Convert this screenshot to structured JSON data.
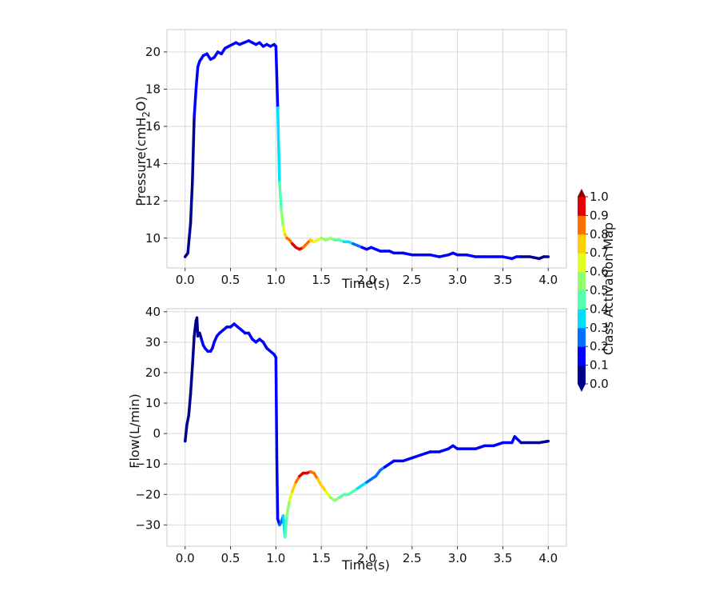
{
  "chart_data": [
    {
      "type": "line",
      "xlabel": "Time(s)",
      "ylabel": "Pressure(cmH",
      "ylabel_sub": "2",
      "ylabel_end": "O)",
      "xlim": [
        -0.2,
        4.2
      ],
      "ylim": [
        8.4,
        21.2
      ],
      "xticks": [
        0.0,
        0.5,
        1.0,
        1.5,
        2.0,
        2.5,
        3.0,
        3.5,
        4.0
      ],
      "xtick_labels": [
        "0.0",
        "0.5",
        "1.0",
        "1.5",
        "2.0",
        "2.5",
        "3.0",
        "3.5",
        "4.0"
      ],
      "yticks": [
        10,
        12,
        14,
        16,
        18,
        20
      ],
      "ytick_labels": [
        "10",
        "12",
        "14",
        "16",
        "18",
        "20"
      ],
      "grid": true,
      "series": [
        {
          "x": [
            0.0,
            0.03,
            0.06,
            0.08,
            0.1,
            0.12,
            0.14,
            0.16,
            0.2,
            0.24,
            0.28,
            0.32,
            0.36,
            0.4,
            0.44,
            0.48,
            0.52,
            0.56,
            0.6,
            0.65,
            0.7,
            0.74,
            0.78,
            0.82,
            0.86,
            0.9,
            0.94,
            0.98,
            1.0,
            1.02,
            1.04,
            1.06,
            1.08,
            1.1,
            1.12,
            1.15,
            1.18,
            1.22,
            1.26,
            1.3,
            1.34,
            1.38,
            1.42,
            1.46,
            1.5,
            1.55,
            1.6,
            1.65,
            1.7,
            1.75,
            1.8,
            1.85,
            1.9,
            1.95,
            2.0,
            2.05,
            2.1,
            2.15,
            2.2,
            2.25,
            2.3,
            2.35,
            2.4,
            2.5,
            2.6,
            2.7,
            2.8,
            2.9,
            2.95,
            3.0,
            3.1,
            3.2,
            3.3,
            3.4,
            3.5,
            3.6,
            3.65,
            3.7,
            3.8,
            3.9,
            3.95,
            4.0
          ],
          "y": [
            9.0,
            9.2,
            10.8,
            13.0,
            16.5,
            18.0,
            19.2,
            19.5,
            19.8,
            19.9,
            19.6,
            19.7,
            20.0,
            19.9,
            20.2,
            20.3,
            20.4,
            20.5,
            20.4,
            20.5,
            20.6,
            20.5,
            20.4,
            20.5,
            20.3,
            20.4,
            20.3,
            20.4,
            20.3,
            17.0,
            13.0,
            11.5,
            10.6,
            10.2,
            10.0,
            9.9,
            9.7,
            9.5,
            9.4,
            9.5,
            9.7,
            9.9,
            9.8,
            9.9,
            10.0,
            9.9,
            10.0,
            9.9,
            9.9,
            9.8,
            9.8,
            9.7,
            9.6,
            9.5,
            9.4,
            9.5,
            9.4,
            9.3,
            9.3,
            9.3,
            9.2,
            9.2,
            9.2,
            9.1,
            9.1,
            9.1,
            9.0,
            9.1,
            9.2,
            9.1,
            9.1,
            9.0,
            9.0,
            9.0,
            9.0,
            8.9,
            9.0,
            9.0,
            9.0,
            8.9,
            9.0,
            9.0
          ],
          "activation": [
            0.0,
            0.0,
            0.05,
            0.08,
            0.1,
            0.1,
            0.1,
            0.1,
            0.1,
            0.1,
            0.1,
            0.1,
            0.1,
            0.1,
            0.1,
            0.1,
            0.1,
            0.1,
            0.1,
            0.1,
            0.1,
            0.1,
            0.1,
            0.1,
            0.1,
            0.1,
            0.1,
            0.1,
            0.12,
            0.25,
            0.35,
            0.45,
            0.55,
            0.65,
            0.75,
            0.85,
            0.92,
            0.95,
            0.95,
            0.9,
            0.85,
            0.75,
            0.7,
            0.65,
            0.6,
            0.55,
            0.5,
            0.5,
            0.45,
            0.4,
            0.35,
            0.3,
            0.25,
            0.2,
            0.15,
            0.15,
            0.12,
            0.12,
            0.12,
            0.12,
            0.12,
            0.12,
            0.12,
            0.12,
            0.12,
            0.12,
            0.12,
            0.12,
            0.12,
            0.12,
            0.12,
            0.12,
            0.12,
            0.12,
            0.1,
            0.1,
            0.1,
            0.1,
            0.08,
            0.05,
            0.05,
            0.0
          ]
        }
      ]
    },
    {
      "type": "line",
      "xlabel": "Time(s)",
      "ylabel": "Flow(L/min)",
      "xlim": [
        -0.2,
        4.2
      ],
      "ylim": [
        -37,
        41
      ],
      "xticks": [
        0.0,
        0.5,
        1.0,
        1.5,
        2.0,
        2.5,
        3.0,
        3.5,
        4.0
      ],
      "xtick_labels": [
        "0.0",
        "0.5",
        "1.0",
        "1.5",
        "2.0",
        "2.5",
        "3.0",
        "3.5",
        "4.0"
      ],
      "yticks": [
        -30,
        -20,
        -10,
        0,
        10,
        20,
        30,
        40
      ],
      "ytick_labels": [
        "−30",
        "−20",
        "−10",
        "0",
        "10",
        "20",
        "30",
        "40"
      ],
      "grid": true,
      "series": [
        {
          "x": [
            0.0,
            0.02,
            0.04,
            0.06,
            0.08,
            0.1,
            0.12,
            0.13,
            0.14,
            0.16,
            0.18,
            0.2,
            0.22,
            0.25,
            0.28,
            0.3,
            0.32,
            0.35,
            0.38,
            0.42,
            0.46,
            0.5,
            0.54,
            0.58,
            0.62,
            0.66,
            0.7,
            0.74,
            0.78,
            0.82,
            0.86,
            0.9,
            0.94,
            0.98,
            1.0,
            1.01,
            1.02,
            1.04,
            1.06,
            1.08,
            1.1,
            1.12,
            1.15,
            1.18,
            1.22,
            1.26,
            1.3,
            1.34,
            1.38,
            1.42,
            1.46,
            1.5,
            1.55,
            1.6,
            1.65,
            1.7,
            1.75,
            1.8,
            1.85,
            1.9,
            1.95,
            2.0,
            2.05,
            2.1,
            2.15,
            2.2,
            2.25,
            2.3,
            2.4,
            2.5,
            2.6,
            2.7,
            2.8,
            2.9,
            2.95,
            3.0,
            3.1,
            3.2,
            3.3,
            3.4,
            3.5,
            3.6,
            3.63,
            3.7,
            3.8,
            3.9,
            4.0
          ],
          "y": [
            -2.5,
            3,
            6,
            13,
            22,
            32,
            37,
            38,
            32,
            33,
            31,
            29,
            28,
            27,
            27,
            28,
            30,
            32,
            33,
            34,
            35,
            35,
            36,
            35,
            34,
            33,
            33,
            31,
            30,
            31,
            30,
            28,
            27,
            26,
            25,
            -8,
            -28,
            -30,
            -29,
            -27,
            -34,
            -27,
            -22,
            -19,
            -16,
            -14,
            -13,
            -13,
            -12.5,
            -13,
            -15,
            -17,
            -19,
            -21,
            -22,
            -21,
            -20,
            -20,
            -19,
            -18,
            -17,
            -16,
            -15,
            -14,
            -12,
            -11,
            -10,
            -9,
            -9,
            -8,
            -7,
            -6,
            -6,
            -5,
            -4,
            -5,
            -5,
            -5,
            -4,
            -4,
            -3,
            -3,
            -1,
            -3,
            -3,
            -3,
            -2.5
          ],
          "activation": [
            0.0,
            0.0,
            0.05,
            0.05,
            0.05,
            0.05,
            0.05,
            0.05,
            0.08,
            0.08,
            0.1,
            0.1,
            0.1,
            0.1,
            0.1,
            0.1,
            0.1,
            0.1,
            0.1,
            0.1,
            0.1,
            0.1,
            0.1,
            0.1,
            0.1,
            0.1,
            0.1,
            0.1,
            0.1,
            0.1,
            0.1,
            0.1,
            0.1,
            0.1,
            0.1,
            0.12,
            0.15,
            0.2,
            0.25,
            0.3,
            0.38,
            0.45,
            0.55,
            0.65,
            0.78,
            0.88,
            0.95,
            0.95,
            0.9,
            0.85,
            0.78,
            0.72,
            0.68,
            0.62,
            0.55,
            0.5,
            0.48,
            0.45,
            0.42,
            0.38,
            0.35,
            0.3,
            0.28,
            0.25,
            0.22,
            0.2,
            0.18,
            0.15,
            0.15,
            0.15,
            0.15,
            0.15,
            0.15,
            0.12,
            0.12,
            0.12,
            0.12,
            0.12,
            0.12,
            0.12,
            0.12,
            0.12,
            0.12,
            0.1,
            0.08,
            0.05,
            0.0
          ]
        }
      ]
    }
  ],
  "colorbar": {
    "label": "Class Activation Map",
    "ticks": [
      "0.0",
      "0.1",
      "0.2",
      "0.3",
      "0.4",
      "0.5",
      "0.6",
      "0.7",
      "0.8",
      "0.9",
      "1.0"
    ],
    "colors": [
      "#00008f",
      "#0000ff",
      "#0070ff",
      "#00dfff",
      "#50ffaf",
      "#8fff70",
      "#dfff20",
      "#ffd000",
      "#ff7000",
      "#e30000",
      "#800000"
    ]
  }
}
